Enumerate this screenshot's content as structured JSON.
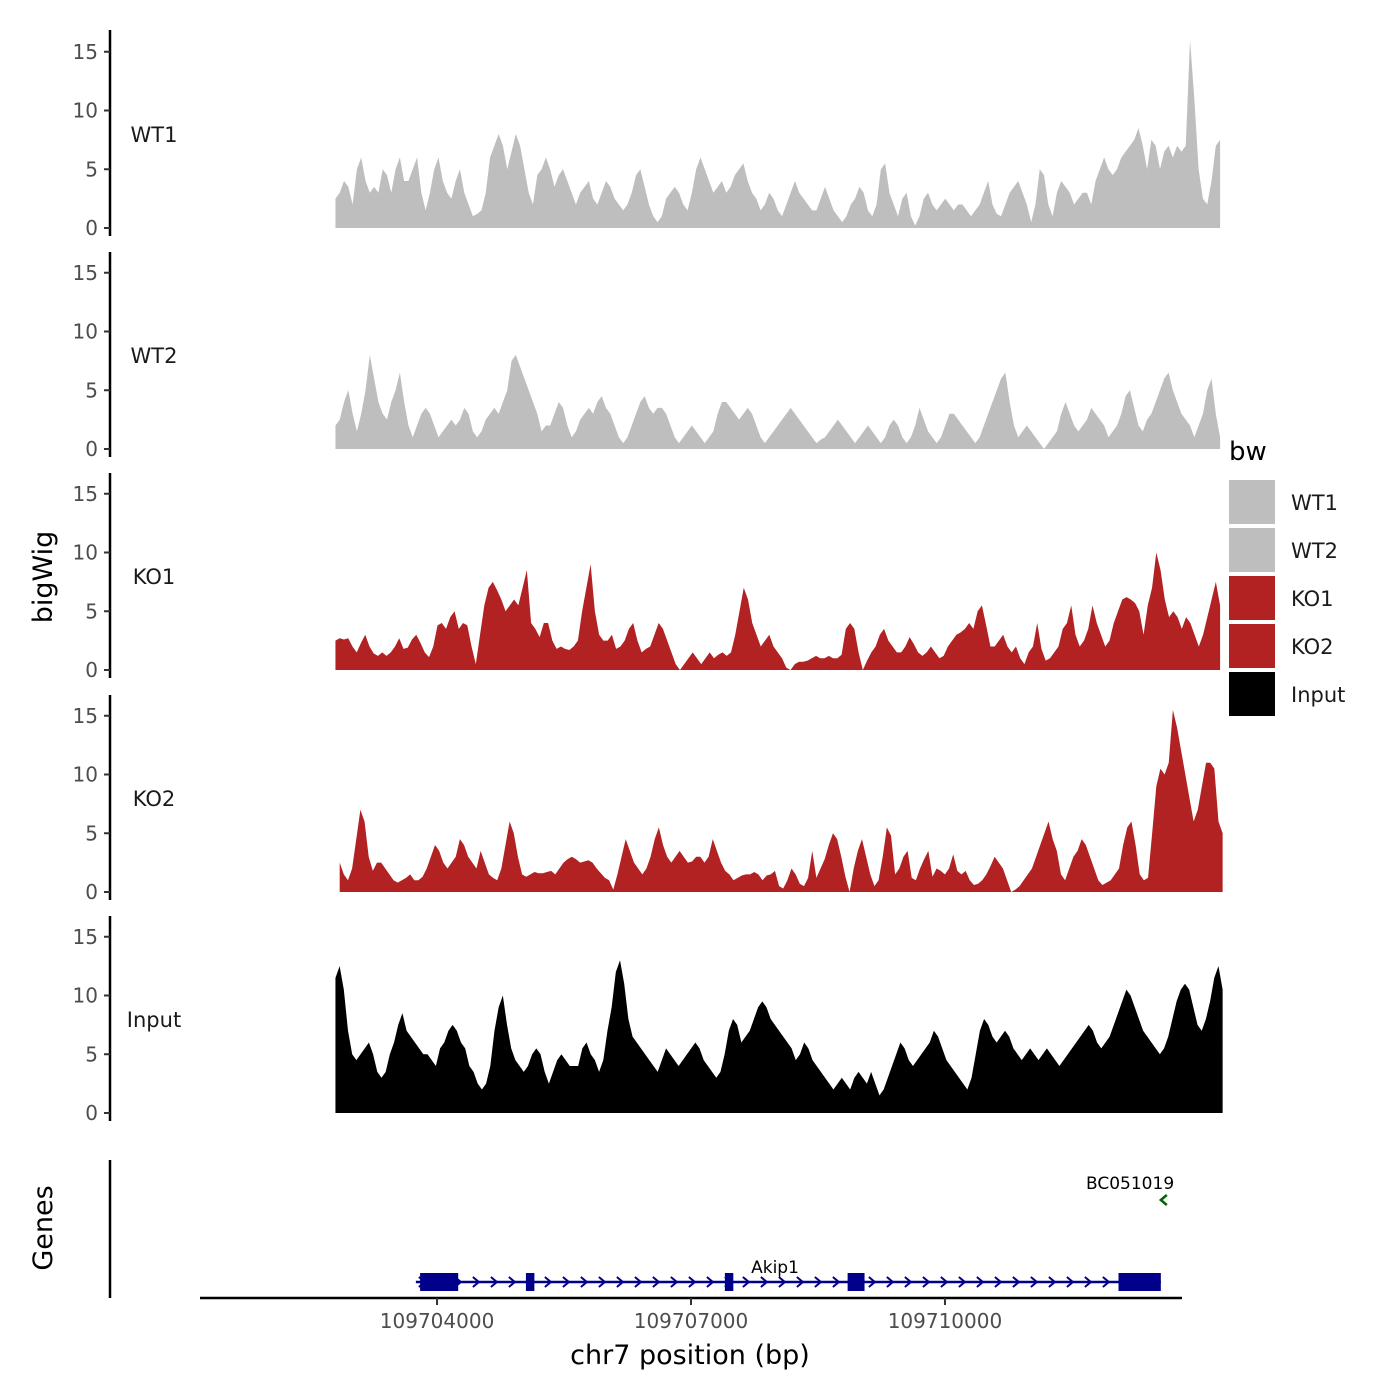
{
  "chart_data": {
    "type": "area",
    "subtype": "genome-browser-coverage-tracks",
    "y_axis_title": "bigWig",
    "genes_axis_title": "Genes",
    "x_axis_title": "chr7 position (bp)",
    "xlim": [
      109701200,
      109712800
    ],
    "x_ticks": [
      109704000,
      109707000,
      109710000
    ],
    "x_tick_labels": [
      "109704000",
      "109707000",
      "109710000"
    ],
    "ylim": [
      0,
      16
    ],
    "y_ticks": [
      0,
      5,
      10,
      15
    ],
    "y_tick_labels": [
      "0",
      "5",
      "10",
      "15"
    ],
    "legend": {
      "title": "bw",
      "position": "right",
      "entries": [
        {
          "label": "WT1",
          "color": "#BEBEBE"
        },
        {
          "label": "WT2",
          "color": "#BEBEBE"
        },
        {
          "label": "KO1",
          "color": "#B22222"
        },
        {
          "label": "KO2",
          "color": "#B22222"
        },
        {
          "label": "Input",
          "color": "#000000"
        }
      ]
    },
    "series": [
      {
        "name": "WT1",
        "color": "#BEBEBE",
        "x_start": 109702800,
        "x_end": 109713250,
        "values": [
          2.5,
          3,
          4,
          3.5,
          2,
          5,
          6,
          4,
          3,
          3.5,
          3,
          5,
          4.5,
          3,
          5,
          6,
          4,
          4,
          5,
          6,
          3,
          1.5,
          3,
          5,
          6,
          4,
          3,
          2.5,
          4,
          5,
          3,
          2,
          1,
          1.2,
          1.5,
          3,
          6,
          7,
          8,
          7,
          5,
          6.5,
          8,
          7,
          5,
          3,
          2,
          4.5,
          5,
          6,
          5,
          3.5,
          4.5,
          5,
          4,
          3,
          2,
          3,
          3.5,
          4,
          2.5,
          2,
          3,
          4,
          3.5,
          2.5,
          2,
          1.5,
          2,
          3,
          4.5,
          5,
          3.5,
          2,
          1,
          0.5,
          1,
          2.5,
          3,
          3.5,
          3,
          2,
          1.5,
          3,
          5,
          6,
          5,
          4,
          3,
          3.5,
          4,
          3,
          3.5,
          4.5,
          5,
          5.5,
          4,
          3,
          2.5,
          1.5,
          2,
          3,
          2.5,
          1.5,
          1,
          2,
          3,
          4,
          3,
          2.5,
          2,
          1.5,
          1.5,
          2.5,
          3.5,
          2.5,
          1.5,
          1,
          0.5,
          1,
          2,
          2.5,
          3.5,
          3,
          1.5,
          1,
          2,
          5,
          5.5,
          3,
          2,
          1,
          2.5,
          3,
          1,
          0.2,
          1,
          2.5,
          3,
          2,
          1.5,
          2,
          2.5,
          2,
          1.5,
          2,
          2,
          1.5,
          1,
          1.5,
          2,
          3,
          4,
          2,
          1.2,
          1,
          2,
          3,
          3.5,
          4,
          3,
          2,
          0.5,
          2,
          5,
          4.5,
          2,
          1,
          3,
          4,
          3.5,
          3,
          2,
          2.5,
          3,
          3,
          2,
          4,
          5,
          6,
          5,
          4.5,
          5,
          6,
          6.5,
          7,
          7.5,
          8.5,
          7,
          5,
          7.5,
          7,
          5,
          6.5,
          7,
          6,
          7,
          6.5,
          7,
          16,
          11,
          5,
          2.5,
          2,
          4,
          7,
          7.5
        ]
      },
      {
        "name": "WT2",
        "color": "#BEBEBE",
        "x_start": 109702800,
        "x_end": 109713250,
        "values": [
          2,
          2.5,
          4,
          5,
          3,
          1.5,
          3,
          5,
          8,
          6,
          4,
          3,
          2.5,
          4,
          5,
          6.5,
          4,
          2,
          1,
          2,
          3,
          3.5,
          3,
          2,
          1,
          1.5,
          2,
          2.5,
          2,
          2.5,
          3.5,
          3,
          1.5,
          1,
          1.5,
          2.5,
          3,
          3.5,
          3,
          4,
          5,
          7.5,
          8,
          7,
          6,
          5,
          4,
          3,
          1.5,
          2,
          2,
          3,
          4,
          3.5,
          2,
          1,
          1.5,
          2.5,
          3,
          3.5,
          3,
          4,
          4.5,
          3.5,
          3,
          2,
          1,
          0.5,
          1,
          2,
          3,
          4,
          4.5,
          3.5,
          3,
          3.5,
          3.5,
          3,
          2,
          1,
          0.5,
          1,
          1.5,
          2,
          1.5,
          1,
          0.5,
          1,
          1.5,
          3,
          4,
          4,
          3.5,
          3,
          2.5,
          3,
          3.5,
          3,
          2,
          1,
          0.5,
          1,
          1.5,
          2,
          2.5,
          3,
          3.5,
          3,
          2.5,
          2,
          1.5,
          1,
          0.5,
          0.8,
          1,
          1.5,
          2,
          2.5,
          2,
          1.5,
          1,
          0.5,
          1,
          1.5,
          2,
          1.5,
          1,
          0.5,
          1,
          2,
          2.5,
          2,
          1,
          0.5,
          1,
          2,
          3.5,
          2.5,
          1.5,
          1,
          0.5,
          1,
          2,
          3,
          3,
          2.5,
          2,
          1.5,
          1,
          0.5,
          1,
          2,
          3,
          4,
          5,
          6,
          6.5,
          4,
          2,
          1,
          1.5,
          2,
          1.5,
          1,
          0.5,
          0,
          0.5,
          1,
          1.5,
          3,
          4,
          3,
          2,
          1.5,
          2,
          2.5,
          3.5,
          3,
          2.5,
          2,
          1,
          1.5,
          2,
          3,
          4.5,
          5,
          3.5,
          2,
          1.5,
          2.5,
          3,
          4,
          5,
          6,
          6.5,
          5,
          4,
          3,
          2.5,
          2,
          1,
          2,
          3,
          5,
          6,
          3,
          1
        ]
      },
      {
        "name": "KO1",
        "color": "#B22222",
        "x_start": 109702800,
        "x_end": 109713250,
        "values": [
          2.5,
          2.7,
          2.6,
          2.7,
          2,
          1.5,
          2.3,
          3,
          2,
          1.4,
          1.2,
          1.5,
          1.2,
          1.5,
          2,
          2.7,
          1.8,
          1.9,
          2.6,
          3,
          2.3,
          1.5,
          1.1,
          2,
          3.8,
          4,
          3.5,
          4.5,
          5,
          3.5,
          4,
          3.8,
          2,
          0.5,
          3,
          5.5,
          7,
          7.5,
          6.8,
          6,
          5,
          5.5,
          6,
          5.5,
          7,
          8.5,
          4,
          3.5,
          2.8,
          4,
          4,
          2.5,
          1.8,
          2,
          1.8,
          1.7,
          2,
          2.5,
          5,
          7,
          9,
          5,
          3,
          2.5,
          2.5,
          3,
          1.8,
          2,
          2.5,
          3.5,
          4,
          2.5,
          1.5,
          1.8,
          2,
          3,
          4,
          3.5,
          2.5,
          1.5,
          0.5,
          0,
          0.5,
          1,
          1.5,
          1,
          0.5,
          1,
          1.5,
          1,
          1.3,
          1.5,
          1.2,
          1.5,
          3,
          5,
          7,
          6,
          4,
          3,
          2,
          2.5,
          3,
          2,
          1.5,
          1,
          0.2,
          0,
          0.5,
          0.7,
          0.7,
          0.8,
          1,
          1.2,
          1,
          1,
          1.2,
          1,
          1,
          1.3,
          3.5,
          4,
          3.5,
          1.5,
          0,
          0.8,
          1.5,
          2,
          3,
          3.5,
          2.5,
          2,
          1.5,
          1.5,
          2,
          2.8,
          2.2,
          1.5,
          1.2,
          1.5,
          2,
          1.5,
          1,
          1.2,
          2,
          2.5,
          3,
          3.2,
          3.5,
          4,
          3.5,
          5,
          5.5,
          3.8,
          2,
          2,
          2.5,
          3,
          2,
          1.5,
          2,
          1,
          0.5,
          1.5,
          2,
          4,
          1.8,
          0.8,
          1,
          1.5,
          2,
          3.5,
          4,
          5.5,
          3,
          2,
          2.5,
          3.5,
          5.5,
          4,
          3,
          2,
          2.5,
          4,
          5,
          6,
          6.2,
          6,
          5.7,
          5,
          3,
          5.5,
          7,
          10,
          8.5,
          6,
          4.5,
          5,
          4.5,
          3.5,
          4.5,
          4,
          3,
          2,
          3,
          4.5,
          6,
          7.5,
          5.5
        ]
      },
      {
        "name": "KO2",
        "color": "#B22222",
        "x_start": 109702850,
        "x_end": 109713280,
        "values": [
          2.5,
          1.5,
          1,
          2,
          4.5,
          7,
          6,
          3,
          1.8,
          2.5,
          2.5,
          2,
          1.5,
          1,
          0.8,
          1,
          1.2,
          1.5,
          1,
          1,
          1.3,
          2,
          3,
          4,
          3.5,
          2.5,
          2,
          2.5,
          3,
          4.5,
          4,
          3,
          2.5,
          2,
          3.5,
          2.5,
          1.5,
          1.2,
          1,
          2,
          4,
          6,
          5,
          3,
          1.5,
          1.3,
          1.5,
          1.7,
          1.6,
          1.6,
          1.7,
          1.8,
          1.5,
          2,
          2.5,
          2.8,
          3,
          2.8,
          2.5,
          2.6,
          2.7,
          2.5,
          2,
          1.6,
          1.2,
          1,
          0.2,
          1.5,
          3,
          4.5,
          3.5,
          2.5,
          2,
          1.5,
          2,
          3,
          4.5,
          5.5,
          4,
          3,
          2.5,
          3,
          3.5,
          3,
          2.5,
          2.6,
          3,
          3,
          2.5,
          3,
          4.5,
          3.5,
          2.5,
          1.8,
          1.5,
          1,
          1.2,
          1.4,
          1.5,
          1.5,
          1.7,
          1.5,
          1,
          1.4,
          1.5,
          1.8,
          0.5,
          0.3,
          1,
          2,
          1.5,
          0.7,
          0.5,
          1.2,
          3.5,
          1.2,
          2,
          2.8,
          4,
          5,
          4.5,
          3,
          1.3,
          0,
          2,
          3.5,
          4.5,
          3,
          1.5,
          0.5,
          1,
          3,
          5.5,
          4.8,
          1.5,
          2,
          3,
          3.5,
          1.2,
          1,
          2,
          2.8,
          3.5,
          1.3,
          2,
          1.8,
          1.5,
          2,
          3.2,
          1.8,
          1.5,
          1.8,
          1,
          0.6,
          0.7,
          1,
          1.5,
          2.2,
          3,
          2.5,
          2,
          1,
          0,
          0.2,
          0.5,
          1,
          1.5,
          2,
          3,
          4,
          5,
          6,
          4.5,
          3.5,
          1.5,
          1,
          2,
          3,
          3.5,
          4.5,
          4,
          3,
          2,
          1,
          0.6,
          0.8,
          1,
          1.5,
          2,
          4,
          5.5,
          6,
          4,
          1.5,
          1,
          1.2,
          5,
          9,
          10.5,
          10,
          11,
          15.5,
          14,
          12,
          10,
          8,
          6,
          7,
          9,
          11,
          11,
          10.5,
          6,
          5
        ]
      },
      {
        "name": "Input",
        "color": "#000000",
        "x_start": 109702800,
        "x_end": 109713280,
        "values": [
          11.5,
          12.5,
          10.5,
          7,
          5,
          4.5,
          5,
          5.5,
          6,
          5,
          3.5,
          3,
          3.5,
          5,
          6,
          7.5,
          8.5,
          7,
          6.5,
          6,
          5.5,
          5,
          5,
          4.5,
          4,
          5.5,
          6,
          7,
          7.5,
          7,
          6,
          5.5,
          4,
          3.5,
          2.5,
          2,
          2.5,
          4,
          7,
          9,
          10,
          7.5,
          5.5,
          4.5,
          4,
          3.5,
          4,
          5,
          5.5,
          5,
          3.5,
          2.5,
          3.5,
          4.5,
          5,
          4.5,
          4,
          4,
          4,
          5.5,
          6,
          5,
          4.5,
          3.5,
          4.5,
          7,
          9,
          12,
          13,
          11,
          8,
          6.5,
          6,
          5.5,
          5,
          4.5,
          4,
          3.5,
          4.5,
          5.5,
          5,
          4.5,
          4,
          4.5,
          5,
          5.5,
          6,
          5.5,
          4.5,
          4,
          3.5,
          3,
          3.5,
          5,
          7,
          8,
          7.5,
          6,
          6.5,
          7,
          8,
          9,
          9.5,
          9,
          8,
          7.5,
          7,
          6.5,
          6,
          5.5,
          4.5,
          5,
          6,
          5.5,
          4.5,
          4,
          3.5,
          3,
          2.5,
          2,
          2.5,
          3,
          2.5,
          2,
          3,
          3.5,
          3,
          2.5,
          3.5,
          2.5,
          1.5,
          2,
          3,
          4,
          5,
          6,
          5.5,
          4.5,
          4,
          4.5,
          5,
          5.5,
          6,
          7,
          6.5,
          5.5,
          4.5,
          4,
          3.5,
          3,
          2.5,
          2,
          3,
          5,
          7,
          8,
          7.5,
          6.5,
          6,
          6.5,
          7,
          6.5,
          5.5,
          5,
          4.5,
          5,
          5.5,
          5,
          4.5,
          5,
          5.5,
          5,
          4.5,
          4,
          4.5,
          5,
          5.5,
          6,
          6.5,
          7,
          7.5,
          7,
          6,
          5.5,
          6,
          6.5,
          7.5,
          8.5,
          9.5,
          10.5,
          10,
          9,
          8,
          7,
          6.5,
          6,
          5.5,
          5,
          5.5,
          6.5,
          8,
          9.5,
          10.5,
          11,
          10.5,
          9,
          7.5,
          7,
          8,
          9.5,
          11.5,
          12.5,
          10.5
        ]
      }
    ],
    "genes": [
      {
        "name": "Akip1",
        "label": "Akip1",
        "strand": "+",
        "color": "#00008B",
        "start": 109703750,
        "end": 109712550,
        "exons": [
          [
            109703800,
            109704250
          ],
          [
            109705050,
            109705150
          ],
          [
            109707400,
            109707500
          ],
          [
            109708850,
            109709050
          ],
          [
            109712050,
            109712550
          ]
        ]
      },
      {
        "name": "BC051019",
        "label": "BC051019",
        "strand": "-",
        "color": "#006400",
        "start": 109712550,
        "end": 109712650,
        "exons": []
      }
    ]
  }
}
